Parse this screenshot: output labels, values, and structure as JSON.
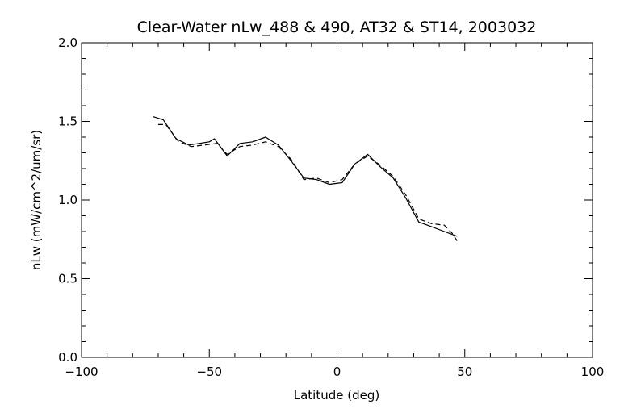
{
  "chart_data": {
    "type": "line",
    "title": "Clear-Water nLw_488 & 490, AT32 & ST14, 2003032",
    "xlabel": "Latitude (deg)",
    "ylabel": "nLw (mW/cm^2/um/sr)",
    "xlim": [
      -100,
      100
    ],
    "ylim": [
      0.0,
      2.0
    ],
    "xticks": [
      -100,
      -50,
      0,
      50,
      100
    ],
    "xtick_labels": [
      "−100",
      "−50",
      "0",
      "50",
      "100"
    ],
    "yticks": [
      0.0,
      0.5,
      1.0,
      1.5,
      2.0
    ],
    "ytick_labels": [
      "0.0",
      "0.5",
      "1.0",
      "1.5",
      "2.0"
    ],
    "grid": false,
    "series": [
      {
        "style": "solid",
        "color": "#000000",
        "x": [
          -72,
          -68,
          -63,
          -58,
          -54,
          -50,
          -48,
          -43,
          -38,
          -33,
          -28,
          -23,
          -18,
          -13,
          -8,
          -3,
          2,
          7,
          12,
          17,
          22,
          27,
          32,
          37,
          42,
          47
        ],
        "y": [
          1.53,
          1.51,
          1.39,
          1.35,
          1.36,
          1.37,
          1.39,
          1.28,
          1.36,
          1.37,
          1.4,
          1.35,
          1.25,
          1.14,
          1.13,
          1.1,
          1.11,
          1.23,
          1.29,
          1.21,
          1.14,
          1.01,
          0.86,
          0.83,
          0.8,
          0.77
        ]
      },
      {
        "style": "dashed",
        "color": "#000000",
        "x": [
          -70,
          -67,
          -62,
          -57,
          -52,
          -47,
          -43,
          -38,
          -33,
          -28,
          -23,
          -18,
          -13,
          -8,
          -3,
          2,
          7,
          12,
          17,
          22,
          27,
          32,
          37,
          42,
          45,
          47
        ],
        "y": [
          1.48,
          1.48,
          1.37,
          1.34,
          1.35,
          1.36,
          1.29,
          1.34,
          1.35,
          1.37,
          1.34,
          1.26,
          1.13,
          1.14,
          1.11,
          1.13,
          1.23,
          1.28,
          1.22,
          1.15,
          1.03,
          0.88,
          0.85,
          0.84,
          0.79,
          0.74
        ]
      }
    ]
  }
}
